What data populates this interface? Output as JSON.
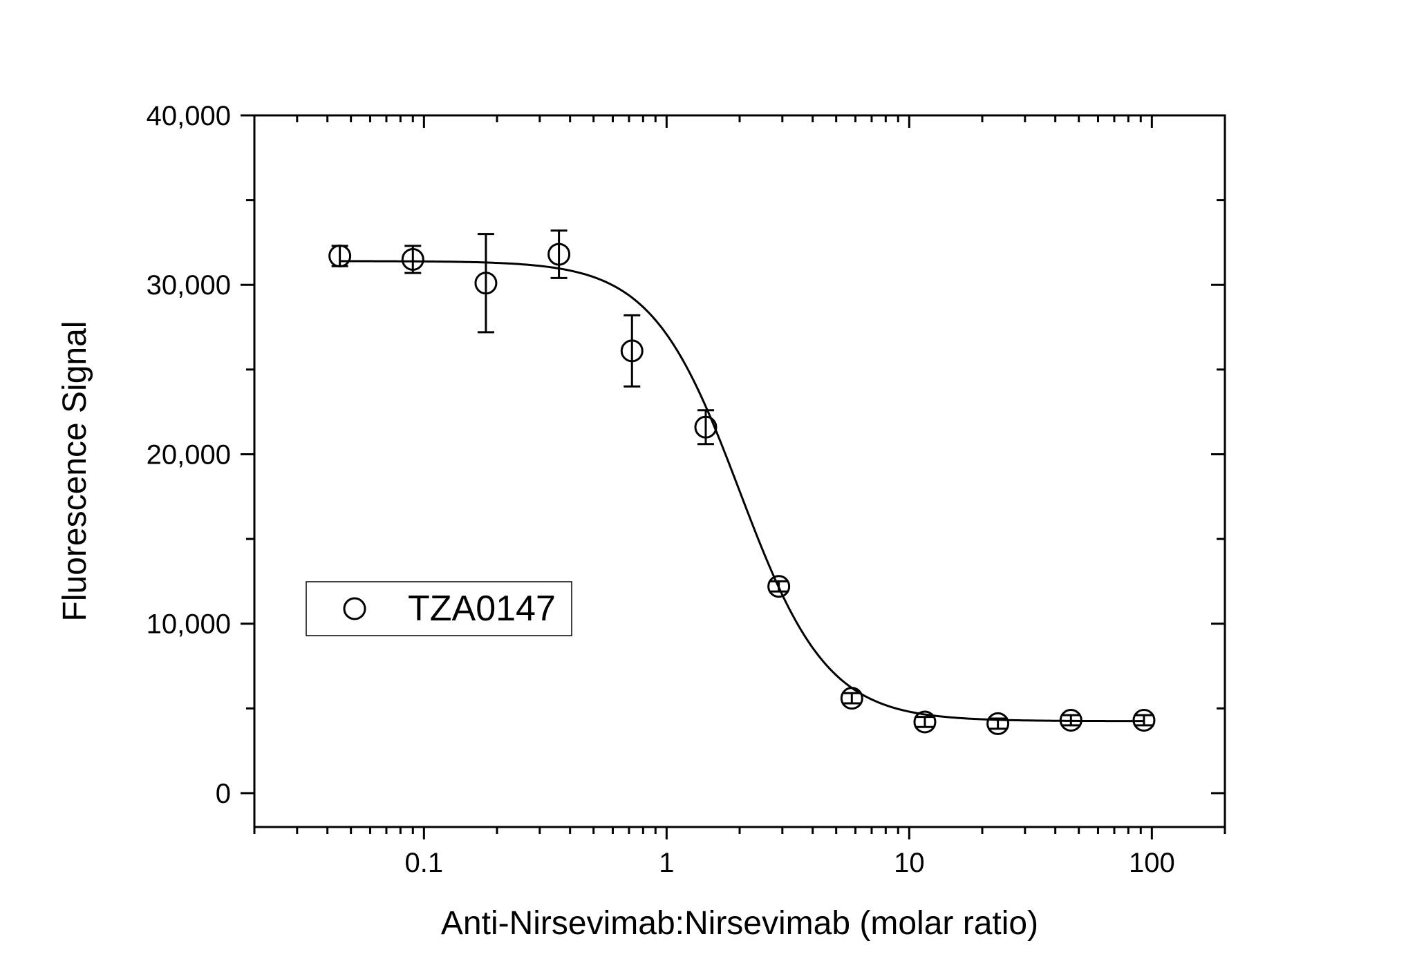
{
  "chart_data": {
    "type": "scatter",
    "title": "",
    "xlabel": "Anti-Nirsevimab:Nirsevimab (molar ratio)",
    "ylabel": "Fluorescence Signal",
    "x_scale": "log",
    "xlim": [
      0.02,
      200
    ],
    "ylim": [
      -2000,
      40000
    ],
    "x_ticks": [
      0.1,
      1,
      10,
      100
    ],
    "x_tick_labels": [
      "0.1",
      "1",
      "10",
      "100"
    ],
    "y_ticks": [
      0,
      10000,
      20000,
      30000,
      40000
    ],
    "y_tick_labels": [
      "0",
      "10,000",
      "20,000",
      "30,000",
      "40,000"
    ],
    "grid": false,
    "legend_position": "left-middle",
    "series": [
      {
        "name": "TZA0147",
        "marker": "open-circle",
        "color": "#000000",
        "points": [
          {
            "x": 0.045,
            "y": 31700,
            "err": 600
          },
          {
            "x": 0.09,
            "y": 31500,
            "err": 800
          },
          {
            "x": 0.18,
            "y": 30100,
            "err": 2900
          },
          {
            "x": 0.36,
            "y": 31800,
            "err": 1400
          },
          {
            "x": 0.72,
            "y": 26100,
            "err": 2100
          },
          {
            "x": 1.45,
            "y": 21600,
            "err": 1000
          },
          {
            "x": 2.9,
            "y": 12200,
            "err": 300
          },
          {
            "x": 5.8,
            "y": 5600,
            "err": 300
          },
          {
            "x": 11.6,
            "y": 4200,
            "err": 300
          },
          {
            "x": 23.2,
            "y": 4100,
            "err": 300
          },
          {
            "x": 46.4,
            "y": 4300,
            "err": 300
          },
          {
            "x": 92.8,
            "y": 4300,
            "err": 300
          }
        ]
      }
    ],
    "fit": {
      "name": "TZA0147 fit",
      "model": "4PL",
      "top": 31400,
      "bottom": 4250,
      "ec50": 2.0,
      "hill": 2.4,
      "x_range": [
        0.045,
        92.8
      ]
    }
  }
}
